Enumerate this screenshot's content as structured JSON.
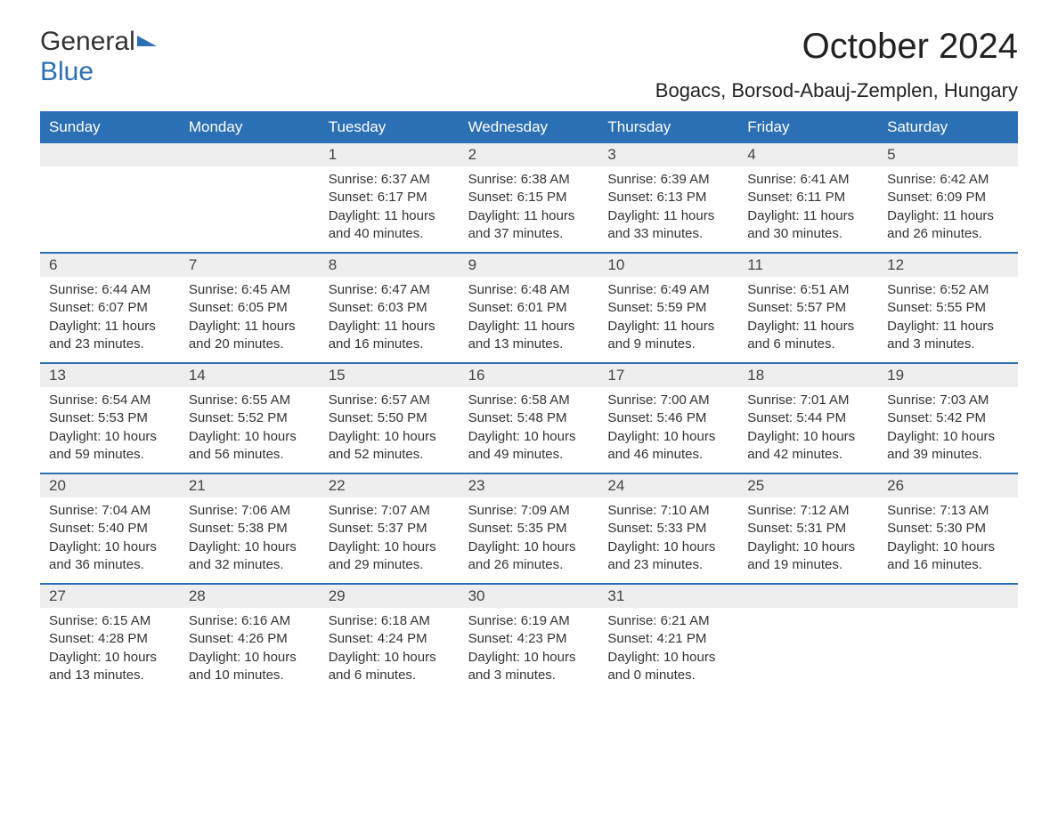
{
  "logo": {
    "general": "General",
    "blue": "Blue"
  },
  "month_title": "October 2024",
  "location": "Bogacs, Borsod-Abauj-Zemplen, Hungary",
  "colors": {
    "header_bg": "#2b6fb5",
    "header_text": "#ffffff",
    "daynum_bg": "#eeeeee",
    "daynum_text": "#444444",
    "body_text": "#333333",
    "row_border": "#2b6fb5",
    "page_bg": "#ffffff"
  },
  "typography": {
    "month_title_fontsize": 40,
    "location_fontsize": 22,
    "weekday_fontsize": 17,
    "daynum_fontsize": 17,
    "body_fontsize": 15
  },
  "weekdays": [
    "Sunday",
    "Monday",
    "Tuesday",
    "Wednesday",
    "Thursday",
    "Friday",
    "Saturday"
  ],
  "weeks": [
    [
      null,
      null,
      {
        "n": "1",
        "sunrise": "6:37 AM",
        "sunset": "6:17 PM",
        "dl1": "Daylight: 11 hours",
        "dl2": "and 40 minutes."
      },
      {
        "n": "2",
        "sunrise": "6:38 AM",
        "sunset": "6:15 PM",
        "dl1": "Daylight: 11 hours",
        "dl2": "and 37 minutes."
      },
      {
        "n": "3",
        "sunrise": "6:39 AM",
        "sunset": "6:13 PM",
        "dl1": "Daylight: 11 hours",
        "dl2": "and 33 minutes."
      },
      {
        "n": "4",
        "sunrise": "6:41 AM",
        "sunset": "6:11 PM",
        "dl1": "Daylight: 11 hours",
        "dl2": "and 30 minutes."
      },
      {
        "n": "5",
        "sunrise": "6:42 AM",
        "sunset": "6:09 PM",
        "dl1": "Daylight: 11 hours",
        "dl2": "and 26 minutes."
      }
    ],
    [
      {
        "n": "6",
        "sunrise": "6:44 AM",
        "sunset": "6:07 PM",
        "dl1": "Daylight: 11 hours",
        "dl2": "and 23 minutes."
      },
      {
        "n": "7",
        "sunrise": "6:45 AM",
        "sunset": "6:05 PM",
        "dl1": "Daylight: 11 hours",
        "dl2": "and 20 minutes."
      },
      {
        "n": "8",
        "sunrise": "6:47 AM",
        "sunset": "6:03 PM",
        "dl1": "Daylight: 11 hours",
        "dl2": "and 16 minutes."
      },
      {
        "n": "9",
        "sunrise": "6:48 AM",
        "sunset": "6:01 PM",
        "dl1": "Daylight: 11 hours",
        "dl2": "and 13 minutes."
      },
      {
        "n": "10",
        "sunrise": "6:49 AM",
        "sunset": "5:59 PM",
        "dl1": "Daylight: 11 hours",
        "dl2": "and 9 minutes."
      },
      {
        "n": "11",
        "sunrise": "6:51 AM",
        "sunset": "5:57 PM",
        "dl1": "Daylight: 11 hours",
        "dl2": "and 6 minutes."
      },
      {
        "n": "12",
        "sunrise": "6:52 AM",
        "sunset": "5:55 PM",
        "dl1": "Daylight: 11 hours",
        "dl2": "and 3 minutes."
      }
    ],
    [
      {
        "n": "13",
        "sunrise": "6:54 AM",
        "sunset": "5:53 PM",
        "dl1": "Daylight: 10 hours",
        "dl2": "and 59 minutes."
      },
      {
        "n": "14",
        "sunrise": "6:55 AM",
        "sunset": "5:52 PM",
        "dl1": "Daylight: 10 hours",
        "dl2": "and 56 minutes."
      },
      {
        "n": "15",
        "sunrise": "6:57 AM",
        "sunset": "5:50 PM",
        "dl1": "Daylight: 10 hours",
        "dl2": "and 52 minutes."
      },
      {
        "n": "16",
        "sunrise": "6:58 AM",
        "sunset": "5:48 PM",
        "dl1": "Daylight: 10 hours",
        "dl2": "and 49 minutes."
      },
      {
        "n": "17",
        "sunrise": "7:00 AM",
        "sunset": "5:46 PM",
        "dl1": "Daylight: 10 hours",
        "dl2": "and 46 minutes."
      },
      {
        "n": "18",
        "sunrise": "7:01 AM",
        "sunset": "5:44 PM",
        "dl1": "Daylight: 10 hours",
        "dl2": "and 42 minutes."
      },
      {
        "n": "19",
        "sunrise": "7:03 AM",
        "sunset": "5:42 PM",
        "dl1": "Daylight: 10 hours",
        "dl2": "and 39 minutes."
      }
    ],
    [
      {
        "n": "20",
        "sunrise": "7:04 AM",
        "sunset": "5:40 PM",
        "dl1": "Daylight: 10 hours",
        "dl2": "and 36 minutes."
      },
      {
        "n": "21",
        "sunrise": "7:06 AM",
        "sunset": "5:38 PM",
        "dl1": "Daylight: 10 hours",
        "dl2": "and 32 minutes."
      },
      {
        "n": "22",
        "sunrise": "7:07 AM",
        "sunset": "5:37 PM",
        "dl1": "Daylight: 10 hours",
        "dl2": "and 29 minutes."
      },
      {
        "n": "23",
        "sunrise": "7:09 AM",
        "sunset": "5:35 PM",
        "dl1": "Daylight: 10 hours",
        "dl2": "and 26 minutes."
      },
      {
        "n": "24",
        "sunrise": "7:10 AM",
        "sunset": "5:33 PM",
        "dl1": "Daylight: 10 hours",
        "dl2": "and 23 minutes."
      },
      {
        "n": "25",
        "sunrise": "7:12 AM",
        "sunset": "5:31 PM",
        "dl1": "Daylight: 10 hours",
        "dl2": "and 19 minutes."
      },
      {
        "n": "26",
        "sunrise": "7:13 AM",
        "sunset": "5:30 PM",
        "dl1": "Daylight: 10 hours",
        "dl2": "and 16 minutes."
      }
    ],
    [
      {
        "n": "27",
        "sunrise": "6:15 AM",
        "sunset": "4:28 PM",
        "dl1": "Daylight: 10 hours",
        "dl2": "and 13 minutes."
      },
      {
        "n": "28",
        "sunrise": "6:16 AM",
        "sunset": "4:26 PM",
        "dl1": "Daylight: 10 hours",
        "dl2": "and 10 minutes."
      },
      {
        "n": "29",
        "sunrise": "6:18 AM",
        "sunset": "4:24 PM",
        "dl1": "Daylight: 10 hours",
        "dl2": "and 6 minutes."
      },
      {
        "n": "30",
        "sunrise": "6:19 AM",
        "sunset": "4:23 PM",
        "dl1": "Daylight: 10 hours",
        "dl2": "and 3 minutes."
      },
      {
        "n": "31",
        "sunrise": "6:21 AM",
        "sunset": "4:21 PM",
        "dl1": "Daylight: 10 hours",
        "dl2": "and 0 minutes."
      },
      null,
      null
    ]
  ],
  "labels": {
    "sunrise_prefix": "Sunrise: ",
    "sunset_prefix": "Sunset: "
  }
}
